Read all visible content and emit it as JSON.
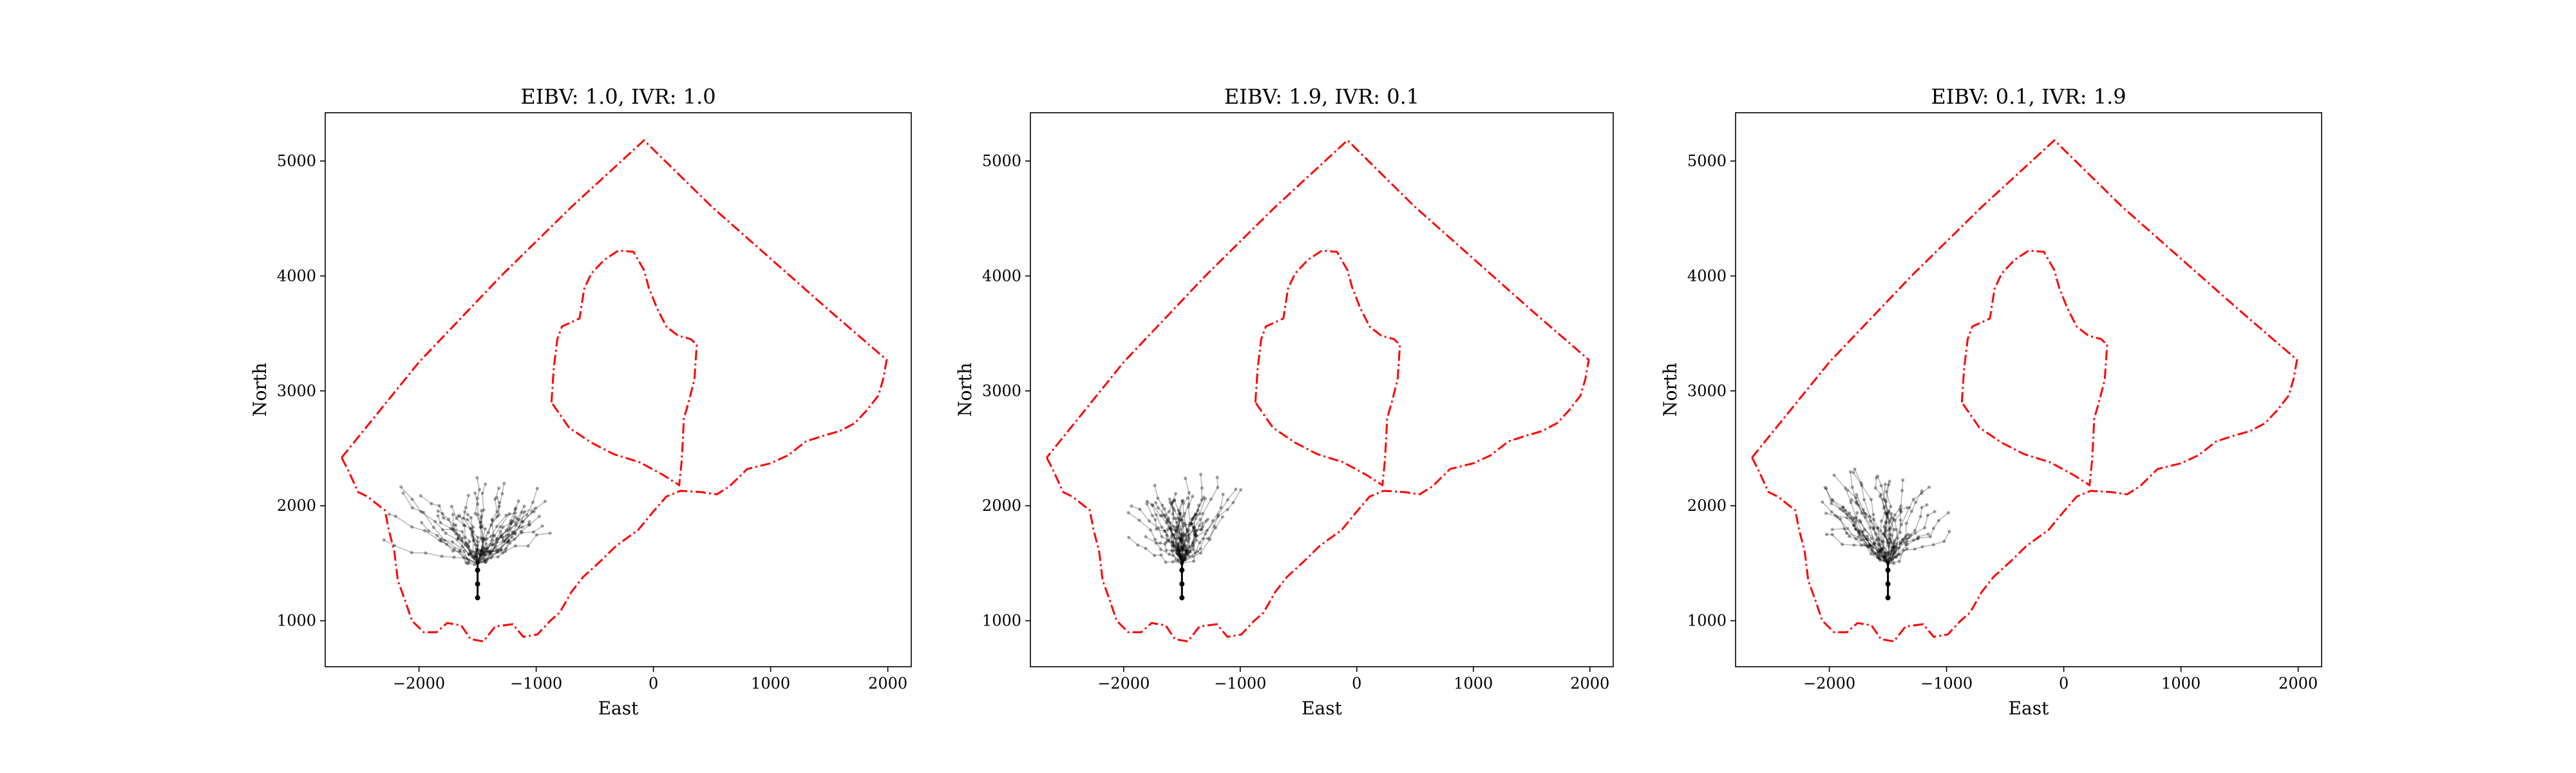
{
  "chart_data": [
    {
      "type": "line",
      "title": "EIBV: 1.0, IVR: 1.0",
      "xlabel": "East",
      "ylabel": "North",
      "xlim": [
        -2800,
        2200
      ],
      "ylim": [
        600,
        5420
      ],
      "xticks": [
        -2000,
        -1000,
        0,
        1000,
        2000
      ],
      "yticks": [
        1000,
        2000,
        3000,
        4000,
        5000
      ],
      "xtick_labels": [
        "−2000",
        "−1000",
        "0",
        "1000",
        "2000"
      ],
      "ytick_labels": [
        "1000",
        "2000",
        "3000",
        "4000",
        "5000"
      ],
      "start_point": {
        "x": -1500,
        "y": 1200
      },
      "cloud_spread": [
        -750,
        600,
        550,
        700
      ],
      "seed": 11,
      "grid": false
    },
    {
      "type": "line",
      "title": "EIBV: 1.9, IVR: 0.1",
      "xlabel": "East",
      "ylabel": "North",
      "xlim": [
        -2800,
        2200
      ],
      "ylim": [
        600,
        5420
      ],
      "xticks": [
        -2000,
        -1000,
        0,
        1000,
        2000
      ],
      "yticks": [
        1000,
        2000,
        3000,
        4000,
        5000
      ],
      "xtick_labels": [
        "−2000",
        "−1000",
        "0",
        "1000",
        "2000"
      ],
      "ytick_labels": [
        "1000",
        "2000",
        "3000",
        "4000",
        "5000"
      ],
      "start_point": {
        "x": -1500,
        "y": 1200
      },
      "cloud_spread": [
        -400,
        450,
        550,
        700
      ],
      "seed": 23,
      "grid": false
    },
    {
      "type": "line",
      "title": "EIBV: 0.1, IVR: 1.9",
      "xlabel": "East",
      "ylabel": "North",
      "xlim": [
        -2800,
        2200
      ],
      "ylim": [
        600,
        5420
      ],
      "xticks": [
        -2000,
        -1000,
        0,
        1000,
        2000
      ],
      "yticks": [
        1000,
        2000,
        3000,
        4000,
        5000
      ],
      "xtick_labels": [
        "−2000",
        "−1000",
        "0",
        "1000",
        "2000"
      ],
      "ytick_labels": [
        "1000",
        "2000",
        "3000",
        "4000",
        "5000"
      ],
      "start_point": {
        "x": -1500,
        "y": 1200
      },
      "cloud_spread": [
        -500,
        500,
        600,
        700
      ],
      "seed": 37,
      "grid": false
    }
  ],
  "boundary": {
    "color": "#ff0000",
    "outer": [
      [
        -2660,
        2420
      ],
      [
        -2600,
        2300
      ],
      [
        -2520,
        2120
      ],
      [
        -2440,
        2080
      ],
      [
        -2290,
        1960
      ],
      [
        -2260,
        1800
      ],
      [
        -2210,
        1600
      ],
      [
        -2180,
        1350
      ],
      [
        -2120,
        1180
      ],
      [
        -2060,
        1000
      ],
      [
        -1960,
        900
      ],
      [
        -1850,
        900
      ],
      [
        -1760,
        980
      ],
      [
        -1640,
        960
      ],
      [
        -1560,
        840
      ],
      [
        -1450,
        820
      ],
      [
        -1350,
        950
      ],
      [
        -1200,
        970
      ],
      [
        -1110,
        860
      ],
      [
        -990,
        880
      ],
      [
        -880,
        1000
      ],
      [
        -800,
        1070
      ],
      [
        -700,
        1250
      ],
      [
        -600,
        1380
      ],
      [
        -450,
        1520
      ],
      [
        -320,
        1650
      ],
      [
        -130,
        1790
      ],
      [
        0,
        1950
      ],
      [
        110,
        2080
      ],
      [
        230,
        2130
      ],
      [
        400,
        2120
      ],
      [
        540,
        2100
      ],
      [
        650,
        2170
      ],
      [
        800,
        2320
      ],
      [
        1000,
        2370
      ],
      [
        1150,
        2440
      ],
      [
        1300,
        2560
      ],
      [
        1450,
        2610
      ],
      [
        1590,
        2650
      ],
      [
        1720,
        2720
      ],
      [
        1820,
        2830
      ],
      [
        1920,
        2960
      ],
      [
        1960,
        3100
      ],
      [
        1990,
        3270
      ],
      [
        1500,
        3700
      ],
      [
        1000,
        4150
      ],
      [
        500,
        4600
      ],
      [
        -80,
        5180
      ],
      [
        -700,
        4600
      ],
      [
        -1300,
        4000
      ],
      [
        -2000,
        3250
      ],
      [
        -2660,
        2420
      ]
    ],
    "island": [
      [
        -870,
        2900
      ],
      [
        -850,
        3200
      ],
      [
        -820,
        3450
      ],
      [
        -780,
        3560
      ],
      [
        -630,
        3630
      ],
      [
        -590,
        3890
      ],
      [
        -530,
        4020
      ],
      [
        -420,
        4140
      ],
      [
        -300,
        4220
      ],
      [
        -170,
        4210
      ],
      [
        -80,
        4050
      ],
      [
        -40,
        3900
      ],
      [
        30,
        3720
      ],
      [
        110,
        3560
      ],
      [
        210,
        3480
      ],
      [
        320,
        3450
      ],
      [
        370,
        3400
      ],
      [
        350,
        3100
      ],
      [
        300,
        2900
      ],
      [
        260,
        2760
      ],
      [
        250,
        2550
      ],
      [
        240,
        2380
      ],
      [
        220,
        2180
      ],
      [
        80,
        2270
      ],
      [
        -120,
        2380
      ],
      [
        -340,
        2450
      ],
      [
        -530,
        2550
      ],
      [
        -720,
        2680
      ],
      [
        -870,
        2900
      ]
    ]
  }
}
